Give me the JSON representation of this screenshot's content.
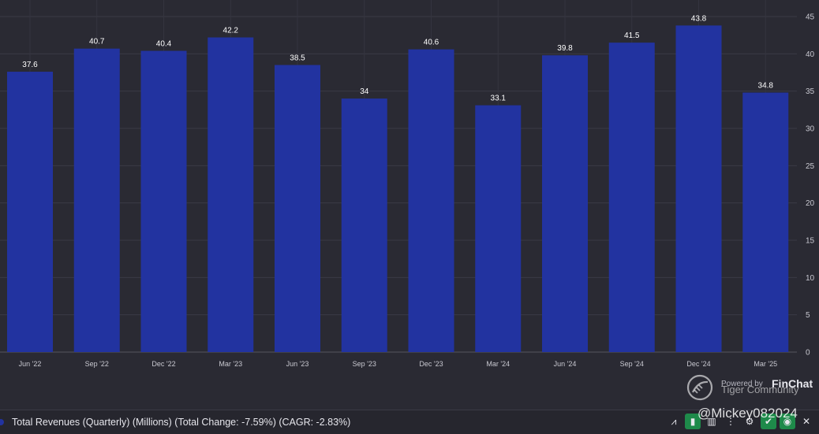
{
  "chart_data": {
    "type": "bar",
    "categories": [
      "Jun '22",
      "Sep '22",
      "Dec '22",
      "Mar '23",
      "Jun '23",
      "Sep '23",
      "Dec '23",
      "Mar '24",
      "Jun '24",
      "Sep '24",
      "Dec '24",
      "Mar '25"
    ],
    "series": [
      {
        "name": "Total Revenues (Quarterly) (Millions)",
        "values": [
          37.6,
          40.7,
          40.4,
          42.2,
          38.5,
          34,
          40.6,
          33.1,
          39.8,
          41.5,
          43.8,
          34.8
        ]
      }
    ],
    "data_labels": [
      "37.6",
      "40.7",
      "40.4",
      "42.2",
      "38.5",
      "34",
      "40.6",
      "33.1",
      "39.8",
      "41.5",
      "43.8",
      "34.8"
    ],
    "y_ticks": [
      0,
      5,
      10,
      15,
      20,
      25,
      30,
      35,
      40,
      45
    ],
    "ylim": [
      0,
      45
    ],
    "yaxis_position": "right",
    "grid": true,
    "bar_color": "#2233a0",
    "title": "",
    "xlabel": "",
    "ylabel": ""
  },
  "legend": {
    "text": "Total Revenues (Quarterly) (Millions) (Total Change: -7.59%) (CAGR: -2.83%)",
    "color": "#2233a0"
  },
  "watermark": {
    "powered_by": "Powered by",
    "brand": "FinChat",
    "community": "Tiger Community",
    "handle": "@Mickey082024"
  },
  "toolbar": {
    "icons": [
      "compare-icon",
      "bar-chart-icon",
      "chart-type-icon",
      "more-icon",
      "settings-icon",
      "check-icon",
      "eye-icon",
      "close-icon"
    ]
  }
}
